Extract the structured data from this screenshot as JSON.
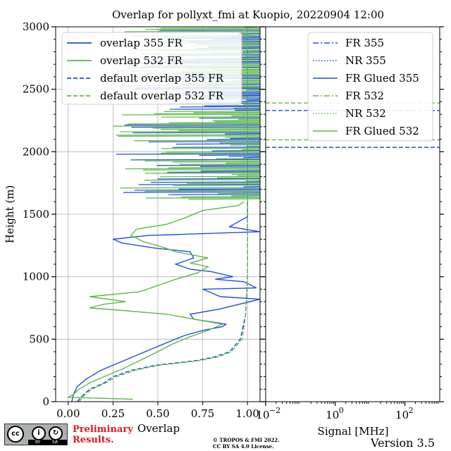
{
  "figure": {
    "title": "Overlap for pollyxt_fmi at Kuopio, 20220904 12:00",
    "preliminary_line1": "Preliminary",
    "preliminary_line2": "Results.",
    "copyright_line1": "© TROPOS & FMI 2022.",
    "copyright_line2": "CC BY SA 4.0 License.",
    "version": "Version 3.5",
    "license_badge": "cc",
    "license_labels": [
      "BY",
      "SA"
    ]
  },
  "chart_data": [
    {
      "type": "line",
      "panel": "left",
      "xlabel": "Overlap",
      "ylabel": "Height (m)",
      "xlim": [
        -0.07,
        1.07
      ],
      "ylim": [
        0,
        3000
      ],
      "xticks": [
        0.0,
        0.25,
        0.5,
        0.75,
        1.0
      ],
      "xtick_labels": [
        "0.00",
        "0.25",
        "0.50",
        "0.75",
        "1.00"
      ],
      "yticks": [
        0,
        500,
        1000,
        1500,
        2000,
        2500,
        3000
      ],
      "ytick_labels": [
        "0",
        "500",
        "1000",
        "1500",
        "2000",
        "2500",
        "3000"
      ],
      "grid": true,
      "legend_position": "upper-left",
      "series": [
        {
          "name": "overlap 355 FR",
          "color": "#1f4fd6",
          "style": "solid",
          "points": [
            [
              0.02,
              0
            ],
            [
              0.03,
              60
            ],
            [
              0.05,
              120
            ],
            [
              0.1,
              180
            ],
            [
              0.18,
              250
            ],
            [
              0.28,
              310
            ],
            [
              0.38,
              370
            ],
            [
              0.48,
              430
            ],
            [
              0.58,
              490
            ],
            [
              0.65,
              530
            ],
            [
              0.75,
              570
            ],
            [
              0.86,
              600
            ],
            [
              0.88,
              620
            ],
            [
              0.7,
              660
            ],
            [
              0.68,
              700
            ],
            [
              0.84,
              740
            ],
            [
              1.07,
              820
            ],
            [
              0.85,
              840
            ],
            [
              0.75,
              900
            ],
            [
              1.05,
              910
            ],
            [
              0.98,
              960
            ],
            [
              0.82,
              980
            ],
            [
              0.92,
              1000
            ],
            [
              0.8,
              1040
            ],
            [
              0.68,
              1060
            ],
            [
              0.6,
              1100
            ],
            [
              0.7,
              1150
            ],
            [
              0.68,
              1200
            ],
            [
              0.48,
              1230
            ],
            [
              0.3,
              1270
            ],
            [
              0.25,
              1300
            ],
            [
              0.45,
              1330
            ],
            [
              1.07,
              1360
            ],
            [
              0.9,
              1400
            ],
            [
              1.0,
              1480
            ],
            [
              1.0,
              1600
            ]
          ]
        },
        {
          "name": "overlap 532 FR",
          "color": "#5cb946",
          "style": "solid",
          "points": [
            [
              0.36,
              20
            ],
            [
              0.0,
              35
            ],
            [
              0.03,
              60
            ],
            [
              0.06,
              100
            ],
            [
              0.12,
              150
            ],
            [
              0.2,
              200
            ],
            [
              0.3,
              260
            ],
            [
              0.4,
              330
            ],
            [
              0.5,
              400
            ],
            [
              0.58,
              460
            ],
            [
              0.68,
              520
            ],
            [
              0.78,
              570
            ],
            [
              0.86,
              620
            ],
            [
              0.55,
              700
            ],
            [
              0.3,
              730
            ],
            [
              0.12,
              750
            ],
            [
              0.2,
              780
            ],
            [
              0.32,
              800
            ],
            [
              0.12,
              840
            ],
            [
              0.4,
              880
            ],
            [
              0.5,
              930
            ],
            [
              0.6,
              980
            ],
            [
              0.72,
              1030
            ],
            [
              0.78,
              1080
            ],
            [
              0.68,
              1110
            ],
            [
              0.78,
              1150
            ],
            [
              0.6,
              1200
            ],
            [
              0.52,
              1240
            ],
            [
              0.42,
              1280
            ],
            [
              0.35,
              1330
            ],
            [
              0.38,
              1380
            ],
            [
              0.55,
              1420
            ],
            [
              0.65,
              1470
            ],
            [
              0.75,
              1530
            ],
            [
              0.95,
              1570
            ],
            [
              0.98,
              1600
            ]
          ]
        },
        {
          "name": "default overlap 355 FR",
          "color": "#1f4fd6",
          "style": "dashed",
          "points": [
            [
              0.05,
              0
            ],
            [
              0.08,
              50
            ],
            [
              0.12,
              100
            ],
            [
              0.2,
              150
            ],
            [
              0.25,
              200
            ],
            [
              0.35,
              250
            ],
            [
              0.48,
              290
            ],
            [
              0.6,
              310
            ],
            [
              0.72,
              330
            ],
            [
              0.82,
              360
            ],
            [
              0.9,
              400
            ],
            [
              0.96,
              500
            ],
            [
              0.99,
              700
            ],
            [
              1.0,
              1000
            ],
            [
              1.0,
              3000
            ]
          ]
        },
        {
          "name": "default overlap 532 FR",
          "color": "#5cb946",
          "style": "dashed",
          "points": [
            [
              0.06,
              0
            ],
            [
              0.09,
              50
            ],
            [
              0.13,
              100
            ],
            [
              0.21,
              150
            ],
            [
              0.27,
              200
            ],
            [
              0.37,
              250
            ],
            [
              0.5,
              290
            ],
            [
              0.62,
              310
            ],
            [
              0.74,
              330
            ],
            [
              0.84,
              360
            ],
            [
              0.91,
              400
            ],
            [
              0.97,
              500
            ],
            [
              0.99,
              700
            ],
            [
              1.0,
              1000
            ],
            [
              1.0,
              3000
            ]
          ]
        }
      ]
    },
    {
      "type": "line",
      "panel": "right",
      "xlabel": "Signal [MHz]",
      "xscale": "log",
      "xlim": [
        0.01,
        1000
      ],
      "ylim": [
        0,
        3000
      ],
      "xticks": [
        0.01,
        1,
        100
      ],
      "xtick_labels_base": [
        "10",
        "10",
        "10"
      ],
      "xtick_labels_exp": [
        "−2",
        "0",
        "2"
      ],
      "grid": false,
      "legend_position": "upper-right",
      "series": [
        {
          "name": "FR 355",
          "color": "#1f4fd6",
          "style": "dashdot",
          "points": []
        },
        {
          "name": "NR 355",
          "color": "#1f4fd6",
          "style": "dotted",
          "points": []
        },
        {
          "name": "FR Glued 355",
          "color": "#1f4fd6",
          "style": "solid",
          "points": []
        },
        {
          "name": "FR 532",
          "color": "#5cb946",
          "style": "dashdot",
          "points": []
        },
        {
          "name": "NR 532",
          "color": "#5cb946",
          "style": "dotted",
          "points": []
        },
        {
          "name": "FR Glued 532",
          "color": "#5cb946",
          "style": "solid",
          "points": []
        }
      ],
      "hlines": [
        {
          "y": 2390,
          "color": "#5cb946",
          "style": "dashed"
        },
        {
          "y": 2330,
          "color": "#1f4fd6",
          "style": "dashed"
        },
        {
          "y": 2095,
          "color": "#5cb946",
          "style": "dashed"
        },
        {
          "y": 2035,
          "color": "#1f4fd6",
          "style": "dashed"
        }
      ]
    }
  ]
}
